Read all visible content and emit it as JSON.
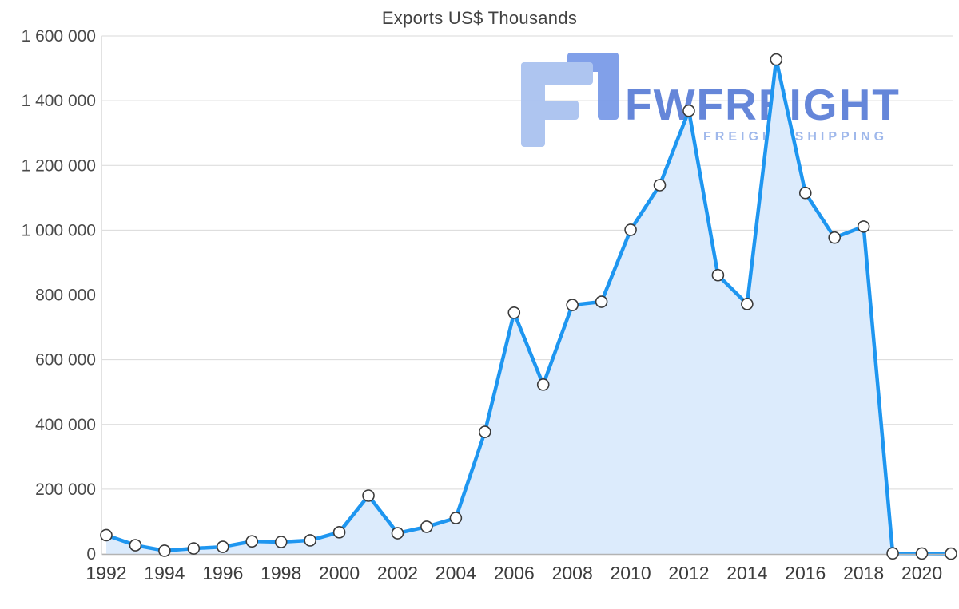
{
  "title": "Exports US$ Thousands",
  "watermark": {
    "brand": "FWFREIGHT",
    "tagline": "FREIGHT SHIPPING",
    "brand_color": "#5d80d8",
    "tagline_color": "#9ab5ea",
    "mark_light_color": "#aac2f0",
    "mark_dark_color": "#7b9be8"
  },
  "colors": {
    "line": "#1e96f0",
    "area_fill": "#dcebfc",
    "marker_fill": "#ffffff",
    "marker_stroke": "#3a3a3a",
    "grid": "#d9d9d9",
    "axis_left": "#e2e2e2",
    "axis_bottom": "#b3b3b3",
    "tick_label": "#3c3c3c",
    "y_label": "#4a4a4a"
  },
  "chart_data": {
    "type": "area",
    "title": "Exports US$ Thousands",
    "x": [
      1992,
      1993,
      1994,
      1995,
      1996,
      1997,
      1998,
      1999,
      2000,
      2001,
      2002,
      2003,
      2004,
      2005,
      2006,
      2007,
      2008,
      2009,
      2010,
      2011,
      2012,
      2013,
      2014,
      2015,
      2016,
      2017,
      2018,
      2019,
      2020,
      2021
    ],
    "values": [
      58000,
      27000,
      10000,
      17000,
      22000,
      39000,
      37000,
      42000,
      67000,
      180000,
      64000,
      84000,
      111000,
      377000,
      745000,
      523000,
      769000,
      779000,
      1001000,
      1139000,
      1369000,
      861000,
      772000,
      1527000,
      1115000,
      977000,
      1011000,
      2000,
      1500,
      1000
    ],
    "xlabel": "",
    "ylabel": "",
    "ylim": [
      0,
      1600000
    ],
    "ytick_step": 200000,
    "yticks": [
      0,
      200000,
      400000,
      600000,
      800000,
      1000000,
      1200000,
      1400000,
      1600000
    ],
    "xtick_labels": [
      "1992",
      "1994",
      "1996",
      "1998",
      "2000",
      "2002",
      "2004",
      "2006",
      "2008",
      "2010",
      "2012",
      "2014",
      "2016",
      "2018",
      "2020"
    ],
    "grid": "horizontal",
    "legend": "none",
    "marker": "circle"
  }
}
